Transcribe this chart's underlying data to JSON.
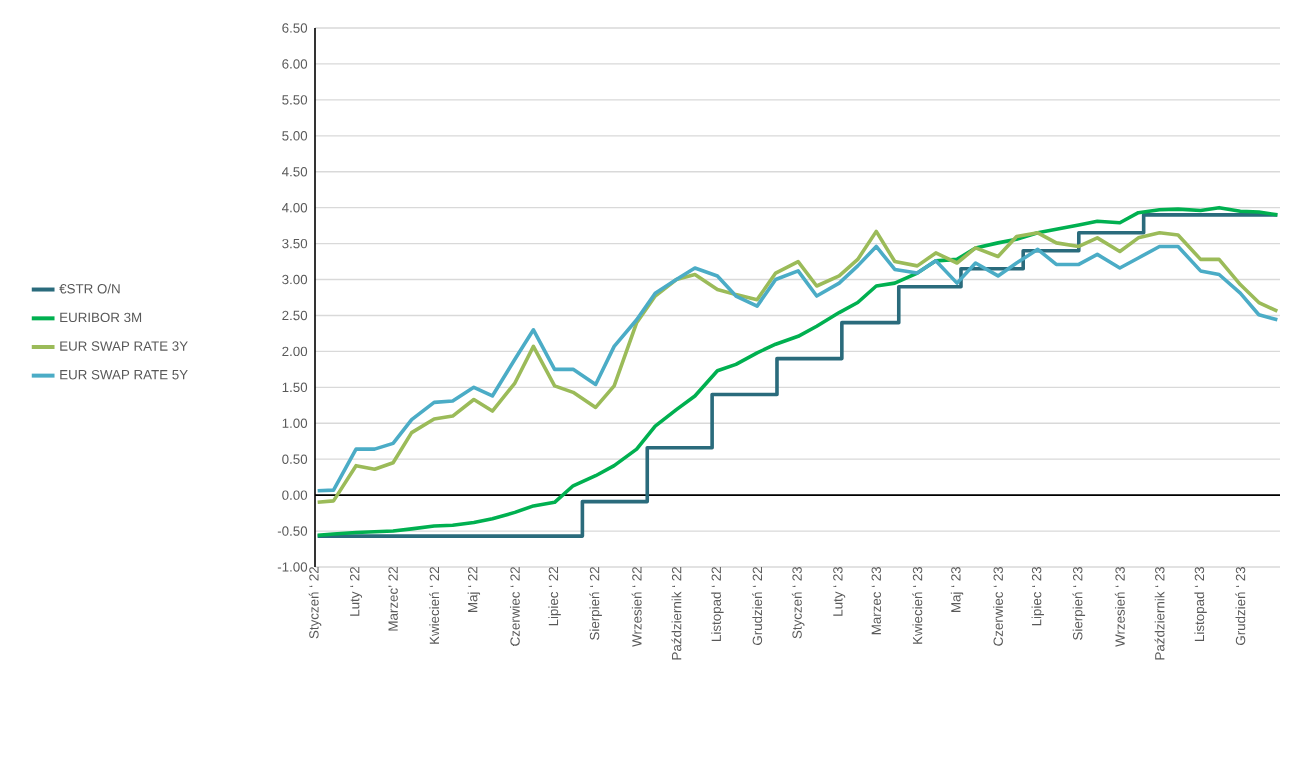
{
  "chart_data": {
    "type": "line",
    "x": [
      "2022-01-03",
      "2022-01-15",
      "2022-02-01",
      "2022-02-15",
      "2022-03-01",
      "2022-03-15",
      "2022-04-01",
      "2022-04-15",
      "2022-05-01",
      "2022-05-15",
      "2022-06-01",
      "2022-06-15",
      "2022-07-01",
      "2022-07-15",
      "2022-08-01",
      "2022-08-15",
      "2022-09-01",
      "2022-09-15",
      "2022-10-01",
      "2022-10-15",
      "2022-11-01",
      "2022-11-15",
      "2022-12-01",
      "2022-12-15",
      "2023-01-01",
      "2023-01-15",
      "2023-02-01",
      "2023-02-15",
      "2023-03-01",
      "2023-03-15",
      "2023-04-01",
      "2023-04-15",
      "2023-05-01",
      "2023-05-15",
      "2023-06-01",
      "2023-06-15",
      "2023-07-01",
      "2023-07-15",
      "2023-08-01",
      "2023-08-15",
      "2023-09-01",
      "2023-09-15",
      "2023-10-01",
      "2023-10-15",
      "2023-11-01",
      "2023-11-15",
      "2023-12-01",
      "2023-12-15",
      "2023-12-29"
    ],
    "series": [
      {
        "name": "€STR O/N",
        "type": "step",
        "color": "#2a6b7c",
        "x": [
          "2022-01-03",
          "2022-07-22",
          "2022-09-09",
          "2022-10-28",
          "2022-12-16",
          "2023-02-03",
          "2023-03-18",
          "2023-05-04",
          "2023-06-20",
          "2023-08-01",
          "2023-09-19",
          "2023-12-29"
        ],
        "values": [
          -0.57,
          -0.09,
          0.66,
          1.4,
          1.9,
          2.4,
          2.9,
          3.15,
          3.4,
          3.65,
          3.9,
          3.9
        ]
      },
      {
        "name": "EURIBOR 3M",
        "color": "#00b050",
        "values": [
          -0.56,
          -0.54,
          -0.52,
          -0.51,
          -0.5,
          -0.47,
          -0.43,
          -0.42,
          -0.38,
          -0.33,
          -0.24,
          -0.15,
          -0.1,
          0.13,
          0.27,
          0.41,
          0.64,
          0.96,
          1.19,
          1.38,
          1.73,
          1.82,
          1.98,
          2.1,
          2.21,
          2.35,
          2.54,
          2.68,
          2.91,
          2.95,
          3.09,
          3.26,
          3.28,
          3.44,
          3.51,
          3.56,
          3.65,
          3.7,
          3.76,
          3.81,
          3.79,
          3.93,
          3.97,
          3.98,
          3.96,
          4.0,
          3.95,
          3.94,
          3.9
        ]
      },
      {
        "name": "EUR SWAP RATE 3Y",
        "color": "#9bbb59",
        "values": [
          -0.1,
          -0.08,
          0.41,
          0.36,
          0.45,
          0.87,
          1.06,
          1.1,
          1.33,
          1.17,
          1.56,
          2.07,
          1.52,
          1.43,
          1.22,
          1.52,
          2.4,
          2.77,
          3.0,
          3.07,
          2.86,
          2.79,
          2.72,
          3.09,
          3.25,
          2.91,
          3.05,
          3.28,
          3.67,
          3.25,
          3.19,
          3.37,
          3.23,
          3.44,
          3.32,
          3.6,
          3.65,
          3.51,
          3.46,
          3.58,
          3.39,
          3.58,
          3.65,
          3.62,
          3.28,
          3.28,
          2.93,
          2.68,
          2.56
        ]
      },
      {
        "name": "EUR SWAP RATE 5Y",
        "color": "#4bacc6",
        "values": [
          0.06,
          0.07,
          0.64,
          0.64,
          0.72,
          1.05,
          1.29,
          1.31,
          1.5,
          1.38,
          1.89,
          2.3,
          1.75,
          1.75,
          1.54,
          2.07,
          2.44,
          2.81,
          3.0,
          3.16,
          3.05,
          2.77,
          2.63,
          3.0,
          3.12,
          2.77,
          2.95,
          3.19,
          3.46,
          3.14,
          3.09,
          3.26,
          2.95,
          3.23,
          3.05,
          3.23,
          3.42,
          3.21,
          3.21,
          3.35,
          3.16,
          3.3,
          3.46,
          3.46,
          3.12,
          3.07,
          2.81,
          2.51,
          2.44
        ]
      }
    ],
    "xlim": [
      "2022-01-01",
      "2023-12-31"
    ],
    "xticks": [
      {
        "value": "2022-01-01",
        "label": "Styczeń ‘ 22"
      },
      {
        "value": "2022-02-01",
        "label": "Luty ‘ 22"
      },
      {
        "value": "2022-03-01",
        "label": "Marzec’ 22"
      },
      {
        "value": "2022-04-01",
        "label": "Kwiecień ‘ 22"
      },
      {
        "value": "2022-05-01",
        "label": "Maj ‘ 22"
      },
      {
        "value": "2022-06-01",
        "label": "Czerwiec ‘ 22"
      },
      {
        "value": "2022-07-01",
        "label": "Lipiec ‘ 22"
      },
      {
        "value": "2022-08-01",
        "label": "Sierpień ‘ 22"
      },
      {
        "value": "2022-09-01",
        "label": "Wrzesień ‘ 22"
      },
      {
        "value": "2022-10-01",
        "label": "Październik ‘ 22"
      },
      {
        "value": "2022-11-01",
        "label": "Listopad ‘ 22"
      },
      {
        "value": "2022-12-01",
        "label": "Grudzień ‘ 22"
      },
      {
        "value": "2023-01-01",
        "label": "Styczeń ‘ 23"
      },
      {
        "value": "2023-02-01",
        "label": "Luty ‘ 23"
      },
      {
        "value": "2023-03-01",
        "label": "Marzec ‘ 23"
      },
      {
        "value": "2023-04-01",
        "label": "Kwiecień ‘ 23"
      },
      {
        "value": "2023-05-01",
        "label": "Maj ‘ 23"
      },
      {
        "value": "2023-06-01",
        "label": "Czerwiec ‘ 23"
      },
      {
        "value": "2023-07-01",
        "label": "Lipiec ‘ 23"
      },
      {
        "value": "2023-08-01",
        "label": "Sierpień ‘ 23"
      },
      {
        "value": "2023-09-01",
        "label": "Wrzesień ‘ 23"
      },
      {
        "value": "2023-10-01",
        "label": "Październik ‘ 23"
      },
      {
        "value": "2023-11-01",
        "label": "Listopad ‘ 23"
      },
      {
        "value": "2023-12-01",
        "label": "Grudzień ‘ 23"
      }
    ],
    "ylim": [
      -1.0,
      6.5
    ],
    "yticks": [
      {
        "value": -1.0,
        "label": "-1.00"
      },
      {
        "value": -0.5,
        "label": "-0.50"
      },
      {
        "value": 0.0,
        "label": "0.00"
      },
      {
        "value": 0.5,
        "label": "0.50"
      },
      {
        "value": 1.0,
        "label": "1.00"
      },
      {
        "value": 1.5,
        "label": "1.50"
      },
      {
        "value": 2.0,
        "label": "2.00"
      },
      {
        "value": 2.5,
        "label": "2.50"
      },
      {
        "value": 3.0,
        "label": "3.00"
      },
      {
        "value": 3.5,
        "label": "3.50"
      },
      {
        "value": 4.0,
        "label": "4.00"
      },
      {
        "value": 4.5,
        "label": "4.50"
      },
      {
        "value": 5.0,
        "label": "5.00"
      },
      {
        "value": 5.5,
        "label": "5.50"
      },
      {
        "value": 6.0,
        "label": "6.00"
      },
      {
        "value": 6.5,
        "label": "6.50"
      }
    ],
    "grid": "y",
    "legend": "left"
  }
}
